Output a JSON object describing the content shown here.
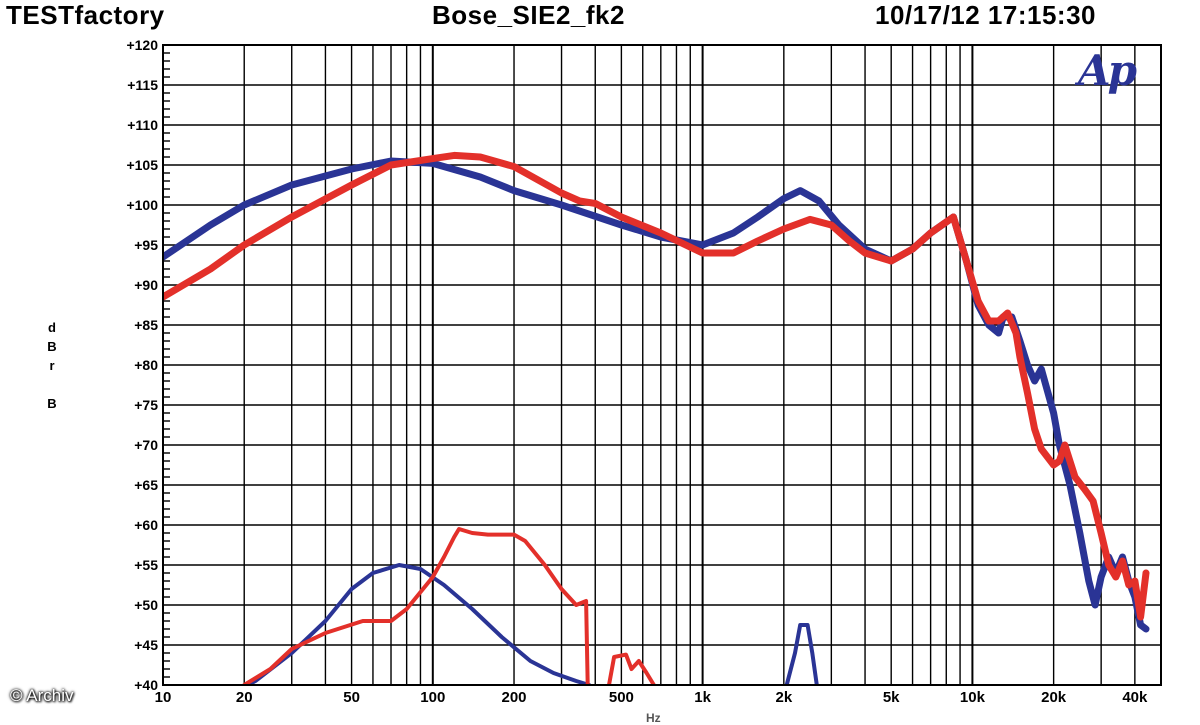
{
  "header": {
    "left": "TESTfactory",
    "center": "Bose_SIE2_fk2",
    "right": "10/17/12 17:15:30"
  },
  "logo": "Ap",
  "watermark": "© Archiv",
  "colors": {
    "series_blue": "#2a3495",
    "series_red": "#e3302a",
    "grid": "#000000"
  },
  "chart_data": {
    "type": "line",
    "title": "Bose_SIE2_fk2",
    "ylabel": "dBrB",
    "xlabel": "Hz",
    "x_scale": "log",
    "xlim": [
      10,
      50000
    ],
    "ylim": [
      40,
      120
    ],
    "grid": true,
    "x_ticks": [
      {
        "v": 10,
        "label": "10"
      },
      {
        "v": 20,
        "label": "20"
      },
      {
        "v": 50,
        "label": "50"
      },
      {
        "v": 100,
        "label": "100"
      },
      {
        "v": 200,
        "label": "200"
      },
      {
        "v": 500,
        "label": "500"
      },
      {
        "v": 1000,
        "label": "1k"
      },
      {
        "v": 2000,
        "label": "2k"
      },
      {
        "v": 5000,
        "label": "5k"
      },
      {
        "v": 10000,
        "label": "10k"
      },
      {
        "v": 20000,
        "label": "20k"
      },
      {
        "v": 40000,
        "label": "40k"
      }
    ],
    "y_ticks": [
      {
        "v": 120,
        "label": "+120"
      },
      {
        "v": 115,
        "label": "+115"
      },
      {
        "v": 110,
        "label": "+110"
      },
      {
        "v": 105,
        "label": "+105"
      },
      {
        "v": 100,
        "label": "+100"
      },
      {
        "v": 95,
        "label": "+95"
      },
      {
        "v": 90,
        "label": "+90"
      },
      {
        "v": 85,
        "label": "+85"
      },
      {
        "v": 80,
        "label": "+80"
      },
      {
        "v": 75,
        "label": "+75"
      },
      {
        "v": 70,
        "label": "+70"
      },
      {
        "v": 65,
        "label": "+65"
      },
      {
        "v": 60,
        "label": "+60"
      },
      {
        "v": 55,
        "label": "+55"
      },
      {
        "v": 50,
        "label": "+50"
      },
      {
        "v": 45,
        "label": "+45"
      },
      {
        "v": 40,
        "label": "+40"
      }
    ],
    "series": [
      {
        "color": "#2a3495",
        "width": 7,
        "points": [
          [
            10,
            93.5
          ],
          [
            15,
            97.5
          ],
          [
            20,
            100
          ],
          [
            30,
            102.5
          ],
          [
            50,
            104.5
          ],
          [
            70,
            105.5
          ],
          [
            100,
            105.2
          ],
          [
            150,
            103.5
          ],
          [
            200,
            101.8
          ],
          [
            300,
            100
          ],
          [
            500,
            97.5
          ],
          [
            700,
            96
          ],
          [
            1000,
            95
          ],
          [
            1300,
            96.5
          ],
          [
            1600,
            98.5
          ],
          [
            2000,
            100.8
          ],
          [
            2300,
            101.8
          ],
          [
            2700,
            100.5
          ],
          [
            3200,
            97.5
          ],
          [
            4000,
            94.5
          ],
          [
            5000,
            93
          ],
          [
            6000,
            94.5
          ],
          [
            7000,
            96.5
          ],
          [
            8500,
            98.5
          ],
          [
            9500,
            93
          ],
          [
            10500,
            87.5
          ],
          [
            11500,
            85
          ],
          [
            12500,
            84
          ],
          [
            13000,
            86
          ],
          [
            14000,
            86
          ],
          [
            15000,
            83
          ],
          [
            16000,
            80
          ],
          [
            17000,
            78
          ],
          [
            18000,
            79.5
          ],
          [
            20000,
            74
          ],
          [
            21000,
            70
          ],
          [
            23000,
            65
          ],
          [
            25000,
            59
          ],
          [
            27000,
            53
          ],
          [
            28500,
            50
          ],
          [
            30000,
            53.5
          ],
          [
            32000,
            56
          ],
          [
            34000,
            54
          ],
          [
            36000,
            56
          ],
          [
            38000,
            53
          ],
          [
            40000,
            51
          ],
          [
            42000,
            47.5
          ],
          [
            44000,
            47
          ]
        ]
      },
      {
        "color": "#e3302a",
        "width": 7,
        "points": [
          [
            10,
            88.5
          ],
          [
            15,
            92
          ],
          [
            20,
            95
          ],
          [
            30,
            98.5
          ],
          [
            50,
            102.5
          ],
          [
            70,
            105
          ],
          [
            100,
            105.8
          ],
          [
            120,
            106.2
          ],
          [
            150,
            106
          ],
          [
            200,
            104.8
          ],
          [
            300,
            101.5
          ],
          [
            350,
            100.5
          ],
          [
            400,
            100.2
          ],
          [
            500,
            98.5
          ],
          [
            700,
            96.5
          ],
          [
            1000,
            94
          ],
          [
            1300,
            94
          ],
          [
            1600,
            95.5
          ],
          [
            2000,
            97
          ],
          [
            2500,
            98.2
          ],
          [
            3000,
            97.5
          ],
          [
            3500,
            95.5
          ],
          [
            4000,
            94
          ],
          [
            5000,
            93
          ],
          [
            6000,
            94.5
          ],
          [
            7000,
            96.5
          ],
          [
            8500,
            98.5
          ],
          [
            9500,
            93
          ],
          [
            10500,
            88
          ],
          [
            11500,
            85.5
          ],
          [
            12500,
            85.5
          ],
          [
            13500,
            86.5
          ],
          [
            14500,
            84
          ],
          [
            15000,
            81
          ],
          [
            16000,
            76.5
          ],
          [
            17000,
            72
          ],
          [
            18000,
            69.5
          ],
          [
            20000,
            67.5
          ],
          [
            21000,
            68
          ],
          [
            22000,
            70
          ],
          [
            24000,
            66
          ],
          [
            26000,
            64.5
          ],
          [
            28000,
            63
          ],
          [
            30000,
            59
          ],
          [
            32000,
            55
          ],
          [
            34000,
            53.5
          ],
          [
            36000,
            55.5
          ],
          [
            38000,
            52.5
          ],
          [
            40000,
            53
          ],
          [
            42000,
            48.5
          ],
          [
            44000,
            54
          ]
        ]
      },
      {
        "color": "#2a3495",
        "width": 4,
        "points": [
          [
            18,
            39
          ],
          [
            22,
            40.5
          ],
          [
            30,
            44
          ],
          [
            40,
            48
          ],
          [
            50,
            52
          ],
          [
            60,
            54
          ],
          [
            75,
            55
          ],
          [
            90,
            54.5
          ],
          [
            110,
            52.5
          ],
          [
            140,
            49.5
          ],
          [
            180,
            46
          ],
          [
            230,
            43
          ],
          [
            280,
            41.5
          ],
          [
            340,
            40.5
          ],
          [
            380,
            40
          ]
        ]
      },
      {
        "color": "#e3302a",
        "width": 4,
        "points": [
          [
            20,
            40
          ],
          [
            25,
            42
          ],
          [
            30,
            44.5
          ],
          [
            40,
            46.5
          ],
          [
            55,
            48
          ],
          [
            70,
            48
          ],
          [
            80,
            49.5
          ],
          [
            100,
            53.5
          ],
          [
            110,
            56
          ],
          [
            120,
            58.5
          ],
          [
            125,
            59.5
          ],
          [
            140,
            59
          ],
          [
            160,
            58.8
          ],
          [
            200,
            58.8
          ],
          [
            220,
            58
          ],
          [
            260,
            55
          ],
          [
            300,
            52
          ],
          [
            340,
            50
          ],
          [
            370,
            50.5
          ],
          [
            375,
            40
          ]
        ]
      },
      {
        "color": "#e3302a",
        "width": 4,
        "points": [
          [
            450,
            40
          ],
          [
            470,
            43.5
          ],
          [
            520,
            43.8
          ],
          [
            545,
            42
          ],
          [
            580,
            43
          ],
          [
            620,
            41.5
          ],
          [
            660,
            40
          ]
        ]
      },
      {
        "color": "#2a3495",
        "width": 4,
        "points": [
          [
            2050,
            40
          ],
          [
            2200,
            44
          ],
          [
            2300,
            47.5
          ],
          [
            2450,
            47.5
          ],
          [
            2550,
            44
          ],
          [
            2650,
            40
          ]
        ]
      }
    ]
  }
}
